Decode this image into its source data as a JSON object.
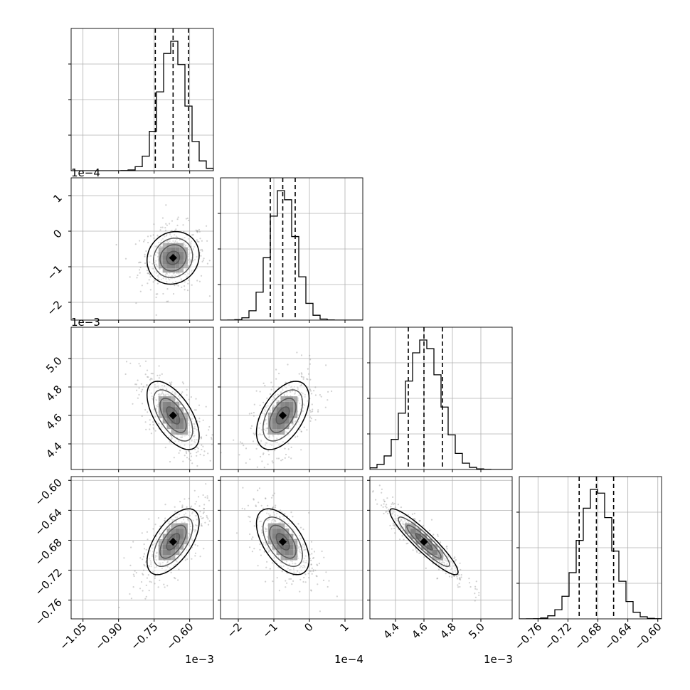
{
  "chart_data": {
    "type": "corner",
    "grid": true,
    "parameters": [
      {
        "range": [
          -1.1,
          -0.5
        ],
        "ticks": [
          -1.05,
          -0.9,
          -0.75,
          -0.6
        ],
        "tick_labels": [
          "−1.05",
          "−0.90",
          "−0.75",
          "−0.60"
        ],
        "offset_label": "1e−3",
        "center": -0.67,
        "sigma": 0.055,
        "quantiles": [
          -0.745,
          -0.67,
          -0.605
        ]
      },
      {
        "range": [
          -2.5,
          1.5
        ],
        "ticks": [
          -2,
          -1,
          0,
          1
        ],
        "tick_labels": [
          "−2",
          "−1",
          "0",
          "1"
        ],
        "offset_label": "1e−4",
        "center": -0.75,
        "sigma": 0.37,
        "quantiles": [
          -1.1,
          -0.75,
          -0.4
        ]
      },
      {
        "range": [
          4.22,
          5.22
        ],
        "ticks": [
          4.4,
          4.6,
          4.8,
          5.0
        ],
        "tick_labels": [
          "4.4",
          "4.6",
          "4.8",
          "5.0"
        ],
        "offset_label": "1e−3",
        "center": 4.6,
        "sigma": 0.12,
        "quantiles": [
          4.49,
          4.6,
          4.73
        ]
      },
      {
        "range": [
          -0.785,
          -0.595
        ],
        "ticks": [
          -0.76,
          -0.72,
          -0.68,
          -0.64,
          -0.6
        ],
        "tick_labels": [
          "−0.76",
          "−0.72",
          "−0.68",
          "−0.64",
          "−0.60"
        ],
        "offset_label": "",
        "center": -0.682,
        "sigma": 0.022,
        "quantiles": [
          -0.705,
          -0.682,
          -0.659
        ]
      }
    ],
    "correlations": {
      "1-0": 0.1,
      "2-0": -0.6,
      "2-1": 0.5,
      "3-0": 0.6,
      "3-1": -0.55,
      "3-2": -0.92
    },
    "contour_levels_sigma": [
      0.5,
      1.0,
      1.5,
      2.0
    ]
  }
}
